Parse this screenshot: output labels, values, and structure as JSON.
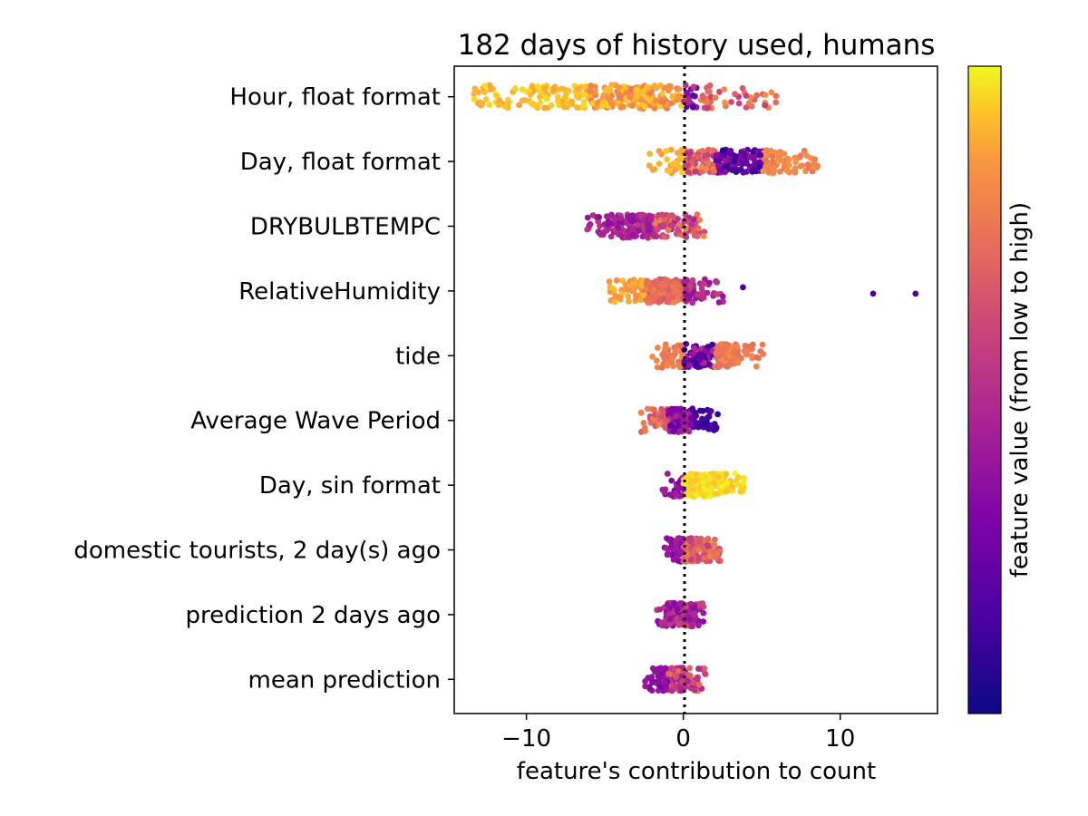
{
  "chart_data": {
    "type": "scatter",
    "subtype": "beeswarm",
    "title": "182 days of history used, humans",
    "xlabel": "feature's contribution to count",
    "ylabel": "",
    "xlim": [
      -14.6,
      16.2
    ],
    "xticks": [
      -10,
      0,
      10
    ],
    "xtick_labels": [
      "−10",
      "0",
      "10"
    ],
    "zero_line": {
      "x": 0,
      "style": "dotted",
      "color": "#000000"
    },
    "grid": false,
    "colorbar": {
      "label": "feature value (from low to high)",
      "colormap": "plasma",
      "low_color": "#0d0887",
      "high_color": "#f0f921"
    },
    "features": [
      {
        "name": "Hour, float format",
        "min": -13.5,
        "max": 6.0
      },
      {
        "name": "Day, float format",
        "min": -2.2,
        "max": 8.6
      },
      {
        "name": "DRYBULBTEMPC",
        "min": -6.3,
        "max": 1.5
      },
      {
        "name": "RelativeHumidity",
        "min": -4.8,
        "max": 2.6,
        "outliers": [
          3.8,
          12.1,
          14.8
        ]
      },
      {
        "name": "tide",
        "min": -2.0,
        "max": 5.2
      },
      {
        "name": "Average Wave Period",
        "min": -2.8,
        "max": 2.2
      },
      {
        "name": "Day, sin format",
        "min": -1.4,
        "max": 4.0
      },
      {
        "name": "domestic tourists, 2 day(s) ago",
        "min": -1.3,
        "max": 2.4
      },
      {
        "name": "prediction 2 days ago",
        "min": -1.7,
        "max": 1.3
      },
      {
        "name": "mean prediction",
        "min": -2.5,
        "max": 1.5
      }
    ]
  }
}
